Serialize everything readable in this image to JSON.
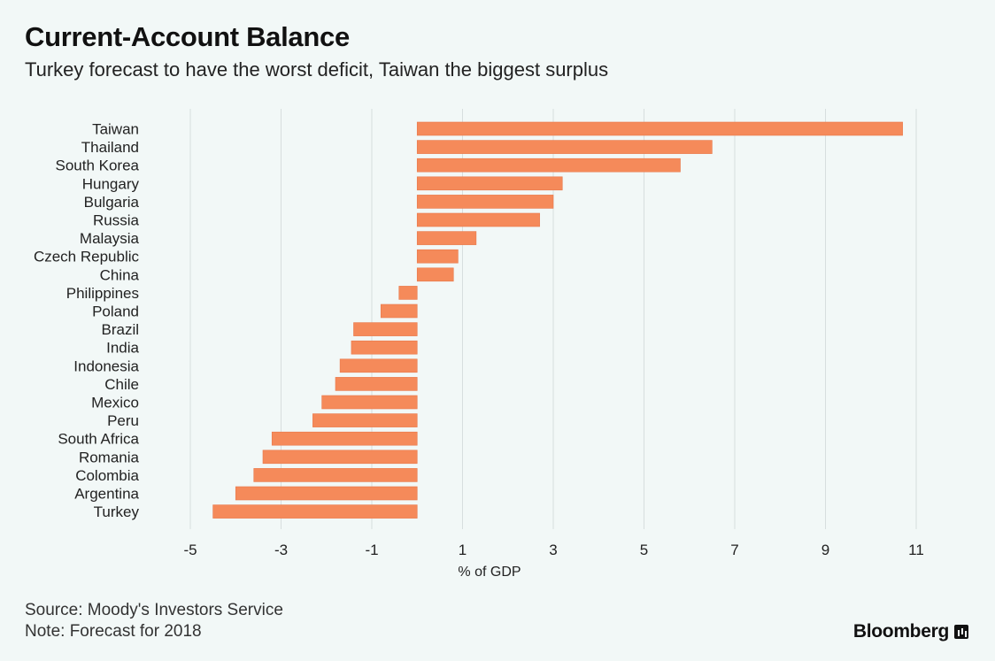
{
  "title": "Current-Account Balance",
  "subtitle": "Turkey forecast to have the worst deficit, Taiwan the biggest surplus",
  "source": "Source: Moody's Investors Service",
  "note": "Note: Forecast for 2018",
  "brand": "Bloomberg",
  "colors": {
    "bar": "#f58a5a",
    "grid": "#d7dede",
    "background": "#f2f8f7"
  },
  "chart_data": {
    "type": "bar",
    "orientation": "horizontal",
    "title": "Current-Account Balance",
    "subtitle": "Turkey forecast to have the worst deficit, Taiwan the biggest surplus",
    "xlabel": "% of GDP",
    "ylabel": "",
    "xlim": [
      -5,
      11
    ],
    "xticks": [
      -5,
      -3,
      -1,
      1,
      3,
      5,
      7,
      9,
      11
    ],
    "grid": true,
    "categories": [
      "Taiwan",
      "Thailand",
      "South Korea",
      "Hungary",
      "Bulgaria",
      "Russia",
      "Malaysia",
      "Czech Republic",
      "China",
      "Philippines",
      "Poland",
      "Brazil",
      "India",
      "Indonesia",
      "Chile",
      "Mexico",
      "Peru",
      "South Africa",
      "Romania",
      "Colombia",
      "Argentina",
      "Turkey"
    ],
    "values": [
      10.7,
      6.5,
      5.8,
      3.2,
      3.0,
      2.7,
      1.3,
      0.9,
      0.8,
      -0.4,
      -0.8,
      -1.4,
      -1.45,
      -1.7,
      -1.8,
      -2.1,
      -2.3,
      -3.2,
      -3.4,
      -3.6,
      -4.0,
      -4.5
    ]
  }
}
